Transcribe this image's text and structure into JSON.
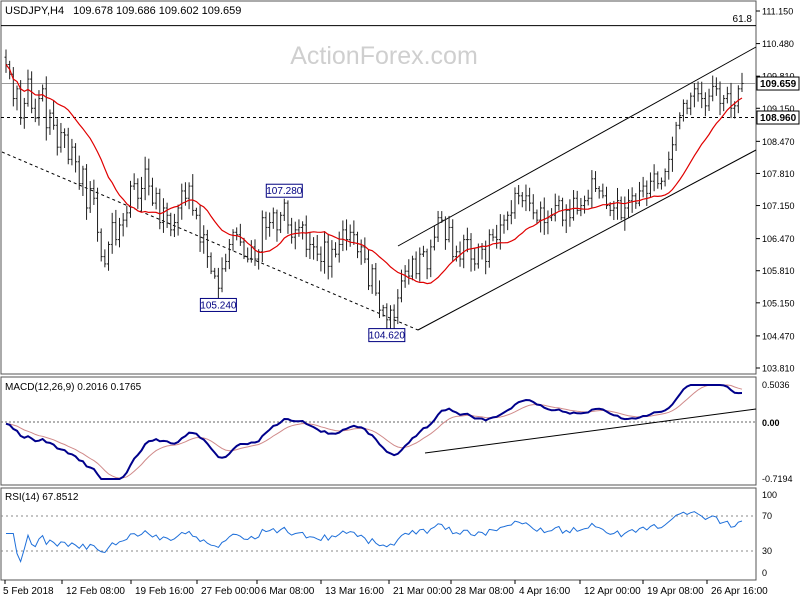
{
  "header": {
    "symbol": "USDJPY,H4",
    "ohlc": "109.678 109.686 109.602 109.659"
  },
  "watermark": "ActionForex.com",
  "colors": {
    "bars": "#1f1f1f",
    "sma": "#e00000",
    "macd_line": "#00008b",
    "signal_line": "#d08a8a",
    "rsi_line": "#1e6fd9",
    "trendline": "#000000",
    "label_border": "#000080"
  },
  "chart_data": [
    {
      "type": "candlestick",
      "name": "price",
      "x_labels": [
        "5 Feb 2018",
        "12 Feb 08:00",
        "19 Feb 16:00",
        "27 Feb 00:00",
        "6 Mar 08:00",
        "13 Mar 16:00",
        "21 Mar 00:00",
        "28 Mar 08:00",
        "4 Apr 16:00",
        "12 Apr 00:00",
        "19 Apr 08:00",
        "26 Apr 16:00"
      ],
      "y_ticks": [
        "111.150",
        "110.480",
        "109.810",
        "109.150",
        "108.470",
        "107.810",
        "107.150",
        "106.470",
        "105.810",
        "105.150",
        "104.470",
        "103.810"
      ],
      "ylim": [
        103.81,
        111.15
      ],
      "current_price": "109.659",
      "level_line": "108.960",
      "fib_label": "61.8",
      "fib_level": 110.85,
      "key_points": [
        {
          "label": "107.280",
          "bar": 76,
          "value": 107.28,
          "side": "high"
        },
        {
          "label": "105.240",
          "bar": 58,
          "value": 105.24,
          "side": "low"
        },
        {
          "label": "104.620",
          "bar": 104,
          "value": 104.62,
          "side": "low"
        }
      ],
      "closes": [
        110.05,
        109.85,
        109.35,
        109.55,
        108.95,
        109.25,
        109.75,
        109.15,
        108.95,
        109.35,
        109.55,
        108.75,
        109.05,
        108.8,
        108.35,
        108.65,
        108.6,
        108.1,
        108.35,
        108.05,
        107.6,
        107.9,
        107.1,
        107.5,
        107.3,
        106.6,
        106.1,
        105.95,
        106.35,
        106.8,
        106.45,
        106.75,
        106.85,
        107.0,
        107.55,
        107.6,
        107.3,
        107.5,
        107.9,
        107.55,
        107.2,
        107.4,
        106.8,
        107.1,
        106.95,
        106.65,
        106.8,
        107.1,
        107.45,
        107.3,
        107.55,
        107.05,
        106.95,
        106.4,
        106.55,
        106.1,
        105.8,
        105.7,
        105.45,
        105.85,
        106.0,
        106.35,
        106.6,
        106.55,
        106.4,
        106.1,
        106.05,
        106.3,
        106.05,
        106.2,
        106.9,
        106.7,
        106.8,
        107.0,
        106.65,
        106.95,
        107.2,
        106.75,
        106.5,
        106.65,
        106.7,
        106.75,
        106.25,
        106.35,
        106.3,
        106.15,
        106.0,
        106.4,
        105.9,
        106.25,
        106.15,
        106.35,
        106.65,
        106.45,
        106.6,
        106.55,
        106.2,
        106.3,
        106.05,
        105.5,
        105.85,
        105.35,
        105.0,
        105.05,
        104.8,
        105.0,
        104.85,
        105.25,
        105.6,
        105.8,
        105.7,
        106.05,
        105.75,
        106.15,
        106.2,
        105.85,
        106.3,
        106.5,
        106.9,
        106.85,
        106.45,
        106.7,
        106.1,
        106.2,
        106.05,
        106.45,
        106.45,
        106.05,
        105.95,
        106.3,
        106.25,
        106.0,
        106.55,
        106.5,
        106.45,
        106.75,
        106.85,
        106.95,
        107.0,
        107.4,
        107.35,
        107.25,
        107.35,
        107.2,
        107.0,
        106.85,
        107.1,
        106.8,
        106.9,
        106.95,
        107.15,
        107.25,
        106.85,
        107.05,
        106.9,
        107.3,
        107.05,
        107.15,
        107.25,
        107.3,
        107.7,
        107.5,
        107.45,
        107.35,
        107.15,
        107.05,
        107.1,
        107.25,
        106.9,
        107.1,
        107.25,
        107.35,
        107.2,
        107.45,
        107.55,
        107.4,
        107.65,
        107.8,
        107.6,
        107.65,
        107.85,
        108.1,
        108.4,
        108.8,
        109.0,
        109.25,
        109.15,
        109.4,
        109.55,
        109.45,
        109.35,
        109.2,
        109.4,
        109.6,
        109.55,
        109.25,
        109.35,
        109.45,
        109.15,
        109.2,
        109.55,
        109.66
      ]
    },
    {
      "type": "line",
      "name": "MACD(12,26,9)",
      "readout": "MACD(12,26,9) 0.2016 0.1765",
      "y_ticks": [
        "0.5036",
        "0.00",
        "-0.7194"
      ],
      "ylim": [
        -0.7194,
        0.5036
      ],
      "series_labels": [
        "0.2016",
        "0.1765"
      ]
    },
    {
      "type": "line",
      "name": "RSI(14)",
      "readout": "RSI(14) 67.8512",
      "y_ticks": [
        "100",
        "70",
        "30",
        "0"
      ],
      "ylim": [
        0,
        100
      ]
    }
  ]
}
